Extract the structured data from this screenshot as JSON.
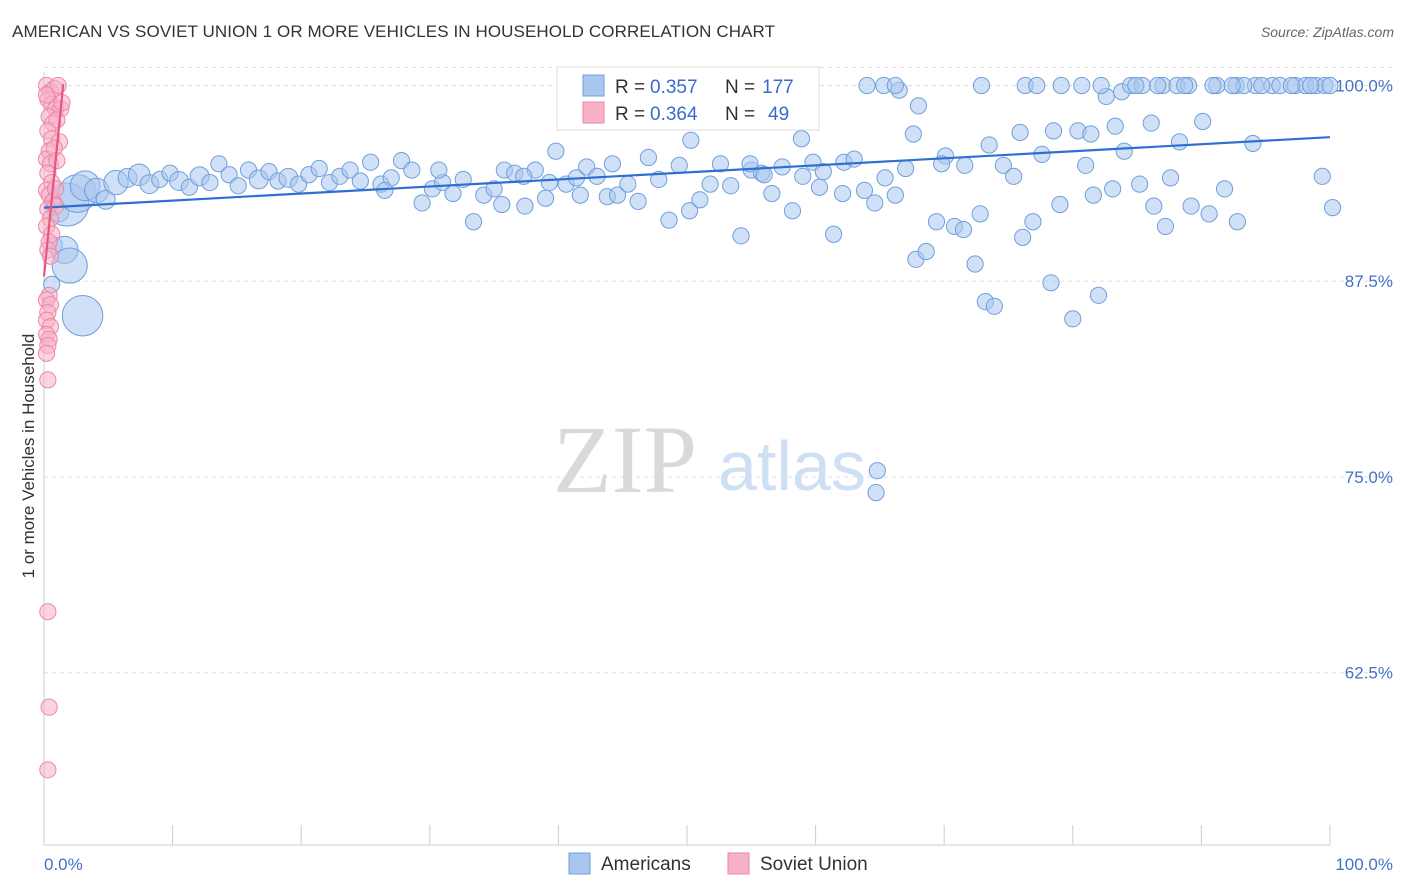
{
  "title": "AMERICAN VS SOVIET UNION 1 OR MORE VEHICLES IN HOUSEHOLD CORRELATION CHART",
  "source": "Source: ZipAtlas.com",
  "watermark": {
    "zip": "ZIP",
    "atlas": "atlas"
  },
  "colors": {
    "americans_fill": "#a9c6ef",
    "americans_stroke": "#6f9fdc",
    "americans_line": "#2f6fd0",
    "soviet_fill": "#f6b3c8",
    "soviet_stroke": "#ee86a6",
    "soviet_line": "#e8557f",
    "grid": "#dddddd",
    "axis_text": "#4472c4"
  },
  "legend": {
    "americans": {
      "r_label": "R =",
      "r_value": "0.357",
      "n_label": "N =",
      "n_value": "177"
    },
    "soviet": {
      "r_label": "R =",
      "r_value": "0.364",
      "n_label": "N =",
      "n_value": "49"
    }
  },
  "chart_data": {
    "type": "scatter",
    "title": "AMERICAN VS SOVIET UNION 1 OR MORE VEHICLES IN HOUSEHOLD CORRELATION CHART",
    "xlabel": "",
    "ylabel": "1 or more Vehicles in Household",
    "xlim": [
      0,
      100
    ],
    "ylim": [
      51.5,
      101.5
    ],
    "x_tick_labels": [
      "0.0%",
      "100.0%"
    ],
    "y_ticks": [
      100,
      87.5,
      75,
      62.5
    ],
    "y_tick_labels": [
      "100.0%",
      "87.5%",
      "75.0%",
      "62.5%"
    ],
    "legend_labels": [
      "Americans",
      "Soviet Union"
    ],
    "series": [
      {
        "name": "Americans",
        "trend": {
          "x0": 0,
          "y0": 92.2,
          "x1": 100,
          "y1": 96.7
        },
        "points": [
          [
            1.2,
            91.9,
            7
          ],
          [
            1.8,
            92.4,
            16
          ],
          [
            2.6,
            93.1,
            14
          ],
          [
            3.2,
            93.6,
            11
          ],
          [
            4.1,
            93.3,
            9
          ],
          [
            4.8,
            92.7,
            7
          ],
          [
            5.6,
            93.8,
            9
          ],
          [
            6.5,
            94.1,
            7
          ],
          [
            7.4,
            94.3,
            8
          ],
          [
            8.2,
            93.7,
            7
          ],
          [
            9.0,
            94.0,
            6
          ],
          [
            9.8,
            94.4,
            6
          ],
          [
            10.5,
            93.9,
            7
          ],
          [
            11.3,
            93.5,
            6
          ],
          [
            12.1,
            94.2,
            7
          ],
          [
            12.9,
            93.8,
            6
          ],
          [
            13.6,
            95.0,
            6
          ],
          [
            14.4,
            94.3,
            6
          ],
          [
            15.1,
            93.6,
            6
          ],
          [
            15.9,
            94.6,
            6
          ],
          [
            16.7,
            94.0,
            7
          ],
          [
            17.5,
            94.5,
            6
          ],
          [
            18.2,
            93.9,
            6
          ],
          [
            19.0,
            94.1,
            7
          ],
          [
            19.8,
            93.7,
            6
          ],
          [
            20.6,
            94.3,
            6
          ],
          [
            21.4,
            94.7,
            6
          ],
          [
            22.2,
            93.8,
            6
          ],
          [
            23.0,
            94.2,
            6
          ],
          [
            23.8,
            94.6,
            6
          ],
          [
            24.6,
            93.9,
            6
          ],
          [
            25.4,
            95.1,
            6
          ],
          [
            26.2,
            93.7,
            6
          ],
          [
            27.0,
            94.1,
            6
          ],
          [
            27.8,
            95.2,
            6
          ],
          [
            28.6,
            94.6,
            6
          ],
          [
            29.4,
            92.5,
            6
          ],
          [
            30.2,
            93.4,
            6
          ],
          [
            31.0,
            93.8,
            6
          ],
          [
            31.8,
            93.1,
            6
          ],
          [
            32.6,
            94.0,
            6
          ],
          [
            33.4,
            91.3,
            6
          ],
          [
            34.2,
            93.0,
            6
          ],
          [
            35.0,
            93.4,
            6
          ],
          [
            35.8,
            94.6,
            6
          ],
          [
            36.6,
            94.4,
            6
          ],
          [
            37.4,
            92.3,
            6
          ],
          [
            38.2,
            94.6,
            6
          ],
          [
            39.0,
            92.8,
            6
          ],
          [
            39.8,
            95.8,
            6
          ],
          [
            40.6,
            93.7,
            6
          ],
          [
            41.4,
            94.1,
            6
          ],
          [
            42.2,
            94.8,
            6
          ],
          [
            43.0,
            94.2,
            6
          ],
          [
            43.8,
            92.9,
            6
          ],
          [
            44.6,
            93.0,
            6
          ],
          [
            45.4,
            93.7,
            6
          ],
          [
            46.2,
            92.6,
            6
          ],
          [
            47.0,
            95.4,
            6
          ],
          [
            47.8,
            94.0,
            6
          ],
          [
            48.6,
            91.4,
            6
          ],
          [
            49.4,
            94.9,
            6
          ],
          [
            50.2,
            92.0,
            6
          ],
          [
            51.0,
            92.7,
            6
          ],
          [
            51.8,
            93.7,
            6
          ],
          [
            52.6,
            95.0,
            6
          ],
          [
            53.4,
            93.6,
            6
          ],
          [
            54.2,
            90.4,
            6
          ],
          [
            55.0,
            94.6,
            6
          ],
          [
            55.8,
            94.4,
            6
          ],
          [
            56.6,
            93.1,
            6
          ],
          [
            57.4,
            94.8,
            6
          ],
          [
            58.2,
            92.0,
            6
          ],
          [
            59.0,
            94.2,
            6
          ],
          [
            59.8,
            95.1,
            6
          ],
          [
            60.6,
            94.5,
            6
          ],
          [
            61.4,
            90.5,
            6
          ],
          [
            62.2,
            95.1,
            6
          ],
          [
            63.0,
            95.3,
            6
          ],
          [
            63.8,
            93.3,
            6
          ],
          [
            64.6,
            92.5,
            6
          ],
          [
            65.4,
            94.1,
            6
          ],
          [
            66.2,
            93.0,
            6
          ],
          [
            67.0,
            94.7,
            6
          ],
          [
            67.8,
            88.9,
            6
          ],
          [
            68.6,
            89.4,
            6
          ],
          [
            69.4,
            91.3,
            6
          ],
          [
            70.1,
            95.5,
            6
          ],
          [
            70.8,
            91.0,
            6
          ],
          [
            71.6,
            94.9,
            6
          ],
          [
            72.4,
            88.6,
            6
          ],
          [
            73.2,
            86.2,
            6
          ],
          [
            73.9,
            85.9,
            6
          ],
          [
            74.6,
            94.9,
            6
          ],
          [
            75.4,
            94.2,
            6
          ],
          [
            76.1,
            90.3,
            6
          ],
          [
            76.9,
            91.3,
            6
          ],
          [
            77.6,
            95.6,
            6
          ],
          [
            78.3,
            87.4,
            6
          ],
          [
            79.0,
            92.4,
            6
          ],
          [
            80.0,
            85.1,
            6
          ],
          [
            81.0,
            94.9,
            6
          ],
          [
            82.0,
            86.6,
            6
          ],
          [
            83.1,
            93.4,
            6
          ],
          [
            84.0,
            95.8,
            6
          ],
          [
            85.2,
            93.7,
            6
          ],
          [
            86.3,
            92.3,
            6
          ],
          [
            87.2,
            91.0,
            6
          ],
          [
            88.3,
            96.4,
            6
          ],
          [
            89.2,
            92.3,
            6
          ],
          [
            90.6,
            91.8,
            6
          ],
          [
            91.8,
            93.4,
            6
          ],
          [
            92.8,
            91.3,
            6
          ],
          [
            94.0,
            96.3,
            6
          ],
          [
            65.3,
            100.0,
            6
          ],
          [
            66.5,
            99.7,
            6
          ],
          [
            68.0,
            98.7,
            6
          ],
          [
            67.6,
            96.9,
            6
          ],
          [
            62.1,
            93.1,
            6
          ],
          [
            60.3,
            93.5,
            6
          ],
          [
            56.0,
            94.3,
            6
          ],
          [
            50.3,
            96.5,
            6
          ],
          [
            80.4,
            97.1,
            6
          ],
          [
            82.6,
            99.3,
            6
          ],
          [
            83.8,
            99.6,
            6
          ],
          [
            84.5,
            100.0,
            6
          ],
          [
            85.4,
            100.0,
            6
          ],
          [
            87.0,
            100.0,
            6
          ],
          [
            88.1,
            100.0,
            6
          ],
          [
            89.0,
            100.0,
            6
          ],
          [
            91.2,
            100.0,
            6
          ],
          [
            92.7,
            100.0,
            6
          ],
          [
            94.2,
            100.0,
            6
          ],
          [
            95.5,
            100.0,
            6
          ],
          [
            96.1,
            100.0,
            6
          ],
          [
            97.3,
            100.0,
            6
          ],
          [
            98.1,
            100.0,
            6
          ],
          [
            98.9,
            100.0,
            6
          ],
          [
            99.6,
            100.0,
            6
          ],
          [
            100.0,
            100.0,
            6
          ],
          [
            75.9,
            97.0,
            6
          ],
          [
            78.5,
            97.1,
            6
          ],
          [
            81.4,
            96.9,
            6
          ],
          [
            86.1,
            97.6,
            6
          ],
          [
            90.1,
            97.7,
            6
          ],
          [
            93.3,
            100.0,
            6
          ],
          [
            66.2,
            100.0,
            6
          ],
          [
            64.0,
            100.0,
            6
          ],
          [
            99.4,
            94.2,
            6
          ],
          [
            100.2,
            92.2,
            6
          ],
          [
            76.3,
            100.0,
            6
          ],
          [
            80.7,
            100.0,
            6
          ],
          [
            72.9,
            100.0,
            6
          ],
          [
            77.2,
            100.0,
            6
          ],
          [
            79.1,
            100.0,
            6
          ],
          [
            82.2,
            100.0,
            6
          ],
          [
            84.9,
            100.0,
            6
          ],
          [
            86.6,
            100.0,
            6
          ],
          [
            88.7,
            100.0,
            6
          ],
          [
            90.9,
            100.0,
            6
          ],
          [
            92.4,
            100.0,
            6
          ],
          [
            94.7,
            100.0,
            6
          ],
          [
            97.0,
            100.0,
            6
          ],
          [
            98.5,
            100.0,
            6
          ],
          [
            83.3,
            97.4,
            6
          ],
          [
            73.5,
            96.2,
            6
          ],
          [
            69.8,
            95.0,
            6
          ],
          [
            58.9,
            96.6,
            6
          ],
          [
            44.2,
            95.0,
            6
          ],
          [
            39.3,
            93.8,
            6
          ],
          [
            35.6,
            92.4,
            6
          ],
          [
            30.7,
            94.6,
            6
          ],
          [
            26.5,
            93.3,
            6
          ],
          [
            37.3,
            94.2,
            6
          ],
          [
            41.7,
            93.0,
            6
          ],
          [
            0.8,
            89.8,
            6
          ],
          [
            1.6,
            89.5,
            10
          ],
          [
            2.0,
            88.5,
            13
          ],
          [
            3.0,
            85.3,
            15
          ],
          [
            0.6,
            87.3,
            6
          ],
          [
            64.7,
            74.0,
            6
          ],
          [
            64.8,
            75.4,
            6
          ],
          [
            54.9,
            95.0,
            6
          ],
          [
            71.5,
            90.8,
            6
          ],
          [
            72.8,
            91.8,
            6
          ],
          [
            81.6,
            93.0,
            6
          ],
          [
            87.6,
            94.1,
            6
          ]
        ]
      },
      {
        "name": "Soviet Union",
        "trend": {
          "x0": 0,
          "y0": 87.8,
          "x1": 1.5,
          "y1": 100.1
        },
        "points": [
          [
            0.2,
            100.0,
            6
          ],
          [
            0.5,
            99.6,
            6
          ],
          [
            0.8,
            99.8,
            6
          ],
          [
            1.1,
            100.0,
            6
          ],
          [
            0.3,
            99.1,
            6
          ],
          [
            0.6,
            98.8,
            6
          ],
          [
            0.9,
            98.5,
            6
          ],
          [
            1.3,
            98.5,
            6
          ],
          [
            0.4,
            98.0,
            6
          ],
          [
            0.7,
            97.6,
            6
          ],
          [
            1.0,
            97.8,
            6
          ],
          [
            0.3,
            97.1,
            6
          ],
          [
            0.6,
            96.6,
            6
          ],
          [
            1.2,
            96.4,
            6
          ],
          [
            0.4,
            95.8,
            6
          ],
          [
            0.2,
            95.3,
            6
          ],
          [
            0.5,
            95.0,
            6
          ],
          [
            0.3,
            94.4,
            6
          ],
          [
            0.6,
            93.8,
            6
          ],
          [
            0.2,
            93.3,
            6
          ],
          [
            0.4,
            93.0,
            6
          ],
          [
            0.7,
            92.6,
            6
          ],
          [
            0.3,
            92.1,
            6
          ],
          [
            0.9,
            92.3,
            6
          ],
          [
            0.5,
            91.5,
            6
          ],
          [
            0.2,
            91.0,
            6
          ],
          [
            0.6,
            90.5,
            6
          ],
          [
            0.4,
            90.0,
            6
          ],
          [
            0.3,
            89.5,
            6
          ],
          [
            0.5,
            89.1,
            6
          ],
          [
            0.4,
            86.6,
            6
          ],
          [
            0.2,
            86.3,
            6
          ],
          [
            0.5,
            86.0,
            6
          ],
          [
            0.3,
            85.5,
            6
          ],
          [
            0.2,
            85.0,
            6
          ],
          [
            0.5,
            84.6,
            6
          ],
          [
            0.2,
            84.1,
            6
          ],
          [
            0.4,
            83.8,
            6
          ],
          [
            0.3,
            83.4,
            6
          ],
          [
            0.2,
            82.9,
            6
          ],
          [
            0.3,
            81.2,
            6
          ],
          [
            0.3,
            66.4,
            6
          ],
          [
            0.4,
            60.3,
            6
          ],
          [
            0.3,
            56.3,
            6
          ],
          [
            0.8,
            96.0,
            6
          ],
          [
            1.0,
            95.2,
            6
          ],
          [
            0.9,
            93.4,
            6
          ],
          [
            0.2,
            99.4,
            6
          ],
          [
            1.4,
            98.9,
            6
          ]
        ]
      }
    ]
  }
}
